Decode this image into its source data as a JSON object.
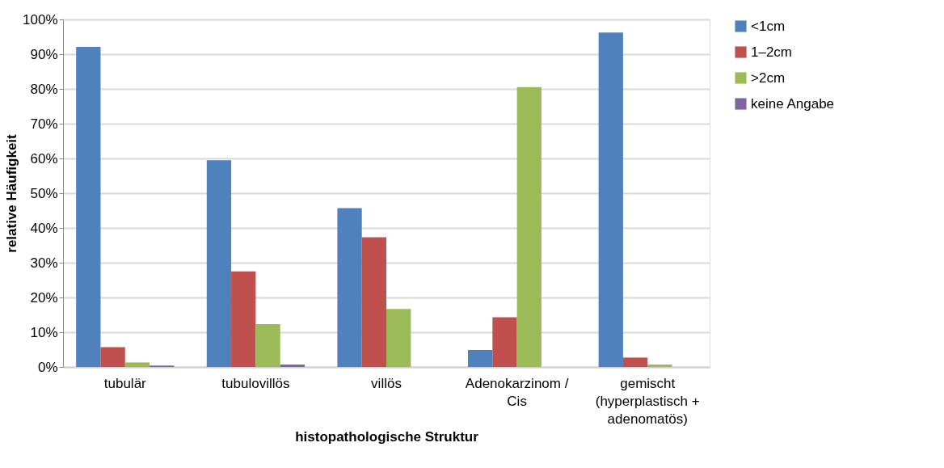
{
  "chart_data": {
    "type": "bar",
    "xlabel": "histopathologische Struktur",
    "ylabel": "relative Häufigkeit",
    "categories": [
      "tubulär",
      "tubulovillös",
      "villös",
      "Adenokarzinom /\nCis",
      "gemischt\n(hyperplastisch +\nadenomatös)"
    ],
    "series": [
      {
        "name": "<1cm",
        "color": "#4f81bd",
        "values": [
          92.1,
          59.5,
          45.7,
          4.9,
          96.2
        ]
      },
      {
        "name": "1–2cm",
        "color": "#c0504d",
        "values": [
          5.7,
          27.5,
          37.3,
          14.3,
          2.7
        ]
      },
      {
        "name": ">2cm",
        "color": "#9bbb59",
        "values": [
          1.3,
          12.3,
          16.7,
          80.5,
          0.7
        ]
      },
      {
        "name": "keine Angabe",
        "color": "#8064a2",
        "values": [
          0.4,
          0.7,
          null,
          null,
          null
        ]
      }
    ],
    "ylim": [
      0,
      100
    ],
    "yticks": [
      {
        "value": 0,
        "label": "0%"
      },
      {
        "value": 10,
        "label": "10%"
      },
      {
        "value": 20,
        "label": "20%"
      },
      {
        "value": 30,
        "label": "30%"
      },
      {
        "value": 40,
        "label": "40%"
      },
      {
        "value": 50,
        "label": "50%"
      },
      {
        "value": 60,
        "label": "60%"
      },
      {
        "value": 70,
        "label": "70%"
      },
      {
        "value": 80,
        "label": "80%"
      },
      {
        "value": 90,
        "label": "90%"
      },
      {
        "value": 100,
        "label": "100%"
      }
    ],
    "grid": "y",
    "legend": "right"
  }
}
